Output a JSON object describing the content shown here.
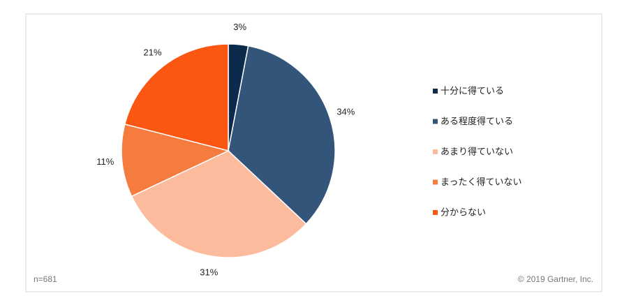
{
  "chart_data": {
    "type": "pie",
    "categories": [
      "十分に得ている",
      "ある程度得ている",
      "あまり得ていない",
      "まったく得ていない",
      "分からない"
    ],
    "values": [
      3,
      34,
      31,
      11,
      21
    ],
    "value_labels": [
      "3%",
      "34%",
      "31%",
      "11%",
      "21%"
    ],
    "colors": [
      "#0c2a4b",
      "#34557a",
      "#fbbb9c",
      "#f57b3f",
      "#fc5613"
    ],
    "legend": "right",
    "note": "n=681",
    "source": "© 2019 Gartner, Inc."
  }
}
